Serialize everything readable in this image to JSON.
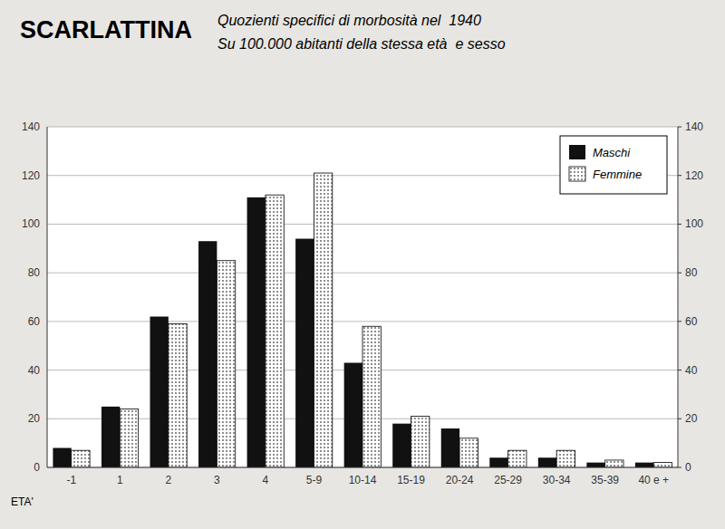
{
  "chart_data": {
    "type": "bar",
    "title": "SCARLATTINA",
    "subtitle": [
      "Quozienti specifici di morbosità nel  1940",
      "Su 100.000 abitanti della stessa età  e sesso"
    ],
    "x_label": "ETA'",
    "categories": [
      "-1",
      "1",
      "2",
      "3",
      "4",
      "5-9",
      "10-14",
      "15-19",
      "20-24",
      "25-29",
      "30-34",
      "35-39",
      "40 e +"
    ],
    "series": [
      {
        "name": "Maschi",
        "color": "#111111",
        "values": [
          8,
          25,
          62,
          93,
          111,
          94,
          43,
          18,
          16,
          4,
          4,
          2,
          2
        ]
      },
      {
        "name": "Femmine",
        "color": "#ffffff",
        "values": [
          7,
          24,
          59,
          85,
          112,
          121,
          58,
          21,
          12,
          7,
          7,
          3,
          2
        ]
      }
    ],
    "ylim": [
      0,
      140
    ],
    "yticks": [
      0,
      20,
      40,
      60,
      80,
      100,
      120,
      140
    ],
    "y2lim": [
      0,
      140
    ],
    "y2ticks": [
      0,
      20,
      40,
      60,
      80,
      100,
      120,
      140
    ],
    "grid": true,
    "legend": "top-right"
  }
}
